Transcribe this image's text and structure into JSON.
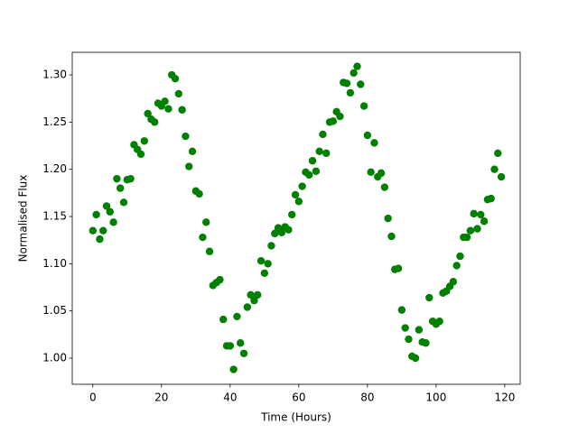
{
  "chart_data": {
    "type": "scatter",
    "xlabel": "Time (Hours)",
    "ylabel": "Normalised Flux",
    "color": "#008000",
    "x": [
      0,
      1,
      2,
      3,
      4,
      5,
      6,
      7,
      8,
      9,
      10,
      11,
      12,
      13,
      14,
      15,
      16,
      17,
      18,
      19,
      20,
      21,
      22,
      23,
      24,
      25,
      26,
      27,
      28,
      29,
      30,
      31,
      32,
      33,
      34,
      35,
      36,
      37,
      38,
      39,
      40,
      41,
      42,
      43,
      44,
      45,
      46,
      47,
      48,
      49,
      50,
      51,
      52,
      53,
      54,
      55,
      56,
      57,
      58,
      59,
      60,
      61,
      62,
      63,
      64,
      65,
      66,
      67,
      68,
      69,
      70,
      71,
      72,
      73,
      74,
      75,
      76,
      77,
      78,
      79,
      80,
      81,
      82,
      83,
      84,
      85,
      86,
      87,
      88,
      89,
      90,
      91,
      92,
      93,
      94,
      95,
      96,
      97,
      98,
      99,
      100,
      101,
      102,
      103,
      104,
      105,
      106,
      107,
      108,
      109,
      110,
      111,
      112,
      113,
      114,
      115,
      116,
      117,
      118,
      119
    ],
    "values": [
      1.135,
      1.152,
      1.126,
      1.135,
      1.161,
      1.155,
      1.144,
      1.19,
      1.18,
      1.165,
      1.189,
      1.19,
      1.226,
      1.221,
      1.216,
      1.23,
      1.259,
      1.253,
      1.25,
      1.27,
      1.267,
      1.272,
      1.264,
      1.3,
      1.296,
      1.28,
      1.263,
      1.235,
      1.203,
      1.219,
      1.177,
      1.174,
      1.128,
      1.144,
      1.113,
      1.077,
      1.08,
      1.083,
      1.041,
      1.013,
      1.013,
      0.988,
      1.044,
      1.016,
      1.005,
      1.054,
      1.067,
      1.061,
      1.067,
      1.103,
      1.09,
      1.1,
      1.119,
      1.132,
      1.138,
      1.133,
      1.139,
      1.136,
      1.152,
      1.173,
      1.166,
      1.182,
      1.197,
      1.194,
      1.209,
      1.198,
      1.219,
      1.237,
      1.217,
      1.25,
      1.251,
      1.261,
      1.256,
      1.292,
      1.291,
      1.281,
      1.302,
      1.309,
      1.29,
      1.267,
      1.236,
      1.197,
      1.228,
      1.192,
      1.196,
      1.181,
      1.148,
      1.129,
      1.094,
      1.095,
      1.051,
      1.032,
      1.02,
      1.002,
      1.0,
      1.03,
      1.017,
      1.016,
      1.064,
      1.039,
      1.036,
      1.039,
      1.069,
      1.071,
      1.076,
      1.081,
      1.098,
      1.108,
      1.128,
      1.128,
      1.135,
      1.153,
      1.137,
      1.152,
      1.145,
      1.168,
      1.169,
      1.2,
      1.217,
      1.192
    ],
    "xlim": [
      -6,
      124.5
    ],
    "ylim": [
      0.9723,
      1.3239
    ],
    "xticks": [
      0,
      20,
      40,
      60,
      80,
      100,
      120
    ],
    "yticks": [
      {
        "value": 1,
        "label": "1.00"
      },
      1.05,
      {
        "value": 1.1,
        "label": "1.10"
      },
      1.15,
      {
        "value": 1.2,
        "label": "1.20"
      },
      1.25,
      {
        "value": 1.3,
        "label": "1.30"
      }
    ]
  }
}
